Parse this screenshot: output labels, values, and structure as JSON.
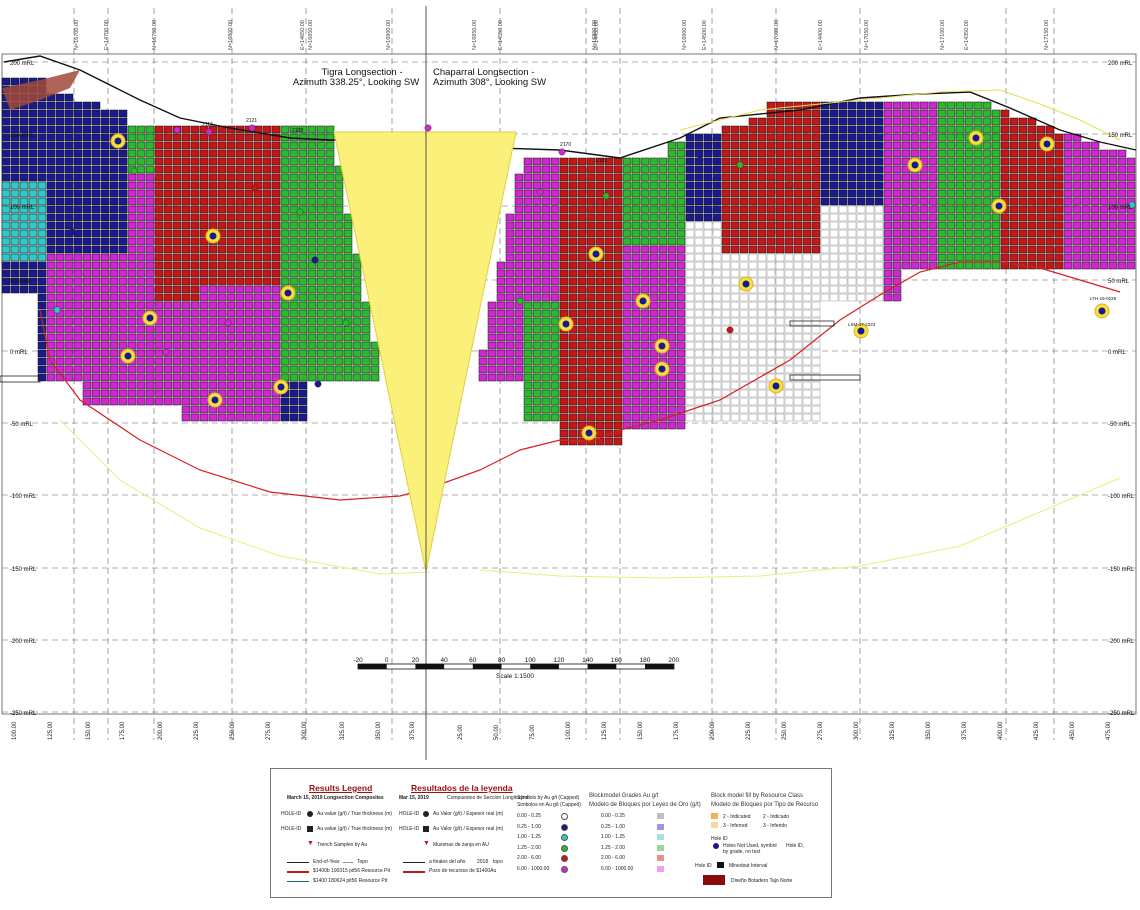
{
  "top_ticks": [
    "N=16700.00",
    "E=14700.00",
    "N=16750.00",
    "N=16800.00",
    "E=14650.00",
    "N=16850.00",
    "N=16900.00",
    "N=16850.00",
    "E=14550.00",
    "N=16800.00",
    "E=14450.00",
    "N=16900.00",
    "E=14500.00",
    "N=17000.00",
    "E=14400.00",
    "N=17050.00",
    "N=17100.00",
    "E=14350.00",
    "N=17150.00"
  ],
  "elevation_labels": [
    "200 mRL",
    "150 mRL",
    "100 mRL",
    "50 mRL",
    "0 mRL",
    "-50 mRL",
    "-100 mRL",
    "-150 mRL",
    "-200 mRL",
    "-250 mRL"
  ],
  "bottom_ticks_left": [
    "100.00",
    "125.00",
    "150.00",
    "175.00",
    "200.00",
    "225.00",
    "250.00",
    "275.00",
    "300.00",
    "325.00",
    "350.00",
    "375.00"
  ],
  "bottom_ticks_right": [
    "25.00",
    "50.00",
    "75.00",
    "100.00",
    "125.00",
    "150.00",
    "175.00",
    "200.00",
    "225.00",
    "250.00",
    "275.00",
    "300.00",
    "325.00",
    "350.00",
    "375.00",
    "400.00",
    "425.00",
    "450.00",
    "475.00"
  ],
  "section_titles": {
    "tigra": [
      "Tigra Longsection -",
      "Azimuth 338.25°, Looking SW"
    ],
    "chaparral": [
      "Chaparral Longsection -",
      "Azimuth 308°, Looking SW"
    ]
  },
  "scale_ticks": [
    "-20",
    "0",
    "20",
    "40",
    "60",
    "80",
    "100",
    "120",
    "140",
    "160",
    "180",
    "200"
  ],
  "scale_label": "Scale 1:1500",
  "hole_labels": [
    "2113",
    "2121",
    "2128",
    "2170",
    "2165",
    "LTH-16-0228",
    "LSM-17-2223"
  ],
  "colors": {
    "blue": "#1a1a8c",
    "green": "#2db82d",
    "magenta": "#d028d0",
    "red": "#c41818",
    "white": "#ffffff",
    "cyan": "#30c8c8",
    "yellow": "#f5ea6e",
    "pit": "#8b3a3a"
  },
  "legend": {
    "title_en": "Results Legend",
    "title_es": "Resultados de la leyenda",
    "sub_en": "March 15, 2019 Longsection Composites",
    "sub_es": "Mar 15, 2019",
    "sub_es2": "Compuestos de Seccion Longitudinal",
    "symbols_en": "Symbols by Au g/t (Capped)",
    "symbols_es": "Simbolos en Au g/t (Capped)",
    "blockmodel_title": "Blockmodel  Grades Au g/t",
    "blockmodel_title_es": "Modelo de Bloques por Leyes de Oro (g/t)",
    "class_title": "Block model  fill by Resource Class",
    "class_title_es": "Modelo de Bloques por Tipo de Recurso",
    "rows_left": [
      "HOLE-ID",
      "HOLE-ID"
    ],
    "row_au_true": "Au value (g/t) / True thickness (m)",
    "row_au_true2": "Au value (g/t) / True thickness (m)",
    "row_au_es": "Au Valor (g/t) / Espesor real (m)",
    "row_au_es2": "Au Valor (g/t) / Espesor real (m)",
    "trench_en": "Trench Samples by Au",
    "trench_es": "Muestras de zanja en AU",
    "eoy_en": "End-of-Year",
    "topo_en": "Topo",
    "eoy_es": "a finales del año",
    "year": "2018",
    "topo_es": "topo",
    "pit1_en": "$1400b 190315 pit56 Resource Pit",
    "pit2_en": "$1400 180624 pit56 Resource Pit",
    "pit_es": "Pozo de recursos de $1400Au",
    "grade_ranges": [
      "0.00 - 0.25",
      "0.25 - 1.00",
      "1.00 - 1.25",
      "1.25 - 2.00",
      "2.00 - 6.00",
      "6.00 - 1000.00"
    ],
    "grade_dot_colors": [
      "#ffffff",
      "#1a1a8c",
      "#30c8c8",
      "#2db82d",
      "#c41818",
      "#d028d0"
    ],
    "grade_fill_colors": [
      "#bfbfbf",
      "#9a9ae0",
      "#a8e0e0",
      "#9ad89a",
      "#e89090",
      "#f0a0f0"
    ],
    "class_items": [
      "2 - Indicated",
      "2 - Indicado",
      "3 - Inferred",
      "3 - Inferido"
    ],
    "class_colors": [
      "#f5b050",
      "#f8d8a0"
    ],
    "holes_not_used": "Holes Not Used, symbol by grade, no text",
    "hole_id": "Hole ID,",
    "mined_out": "Minedout Interval",
    "pit_design": "Diseño Botadero Tajo Norte",
    "pit_design_color": "#8b0a0a",
    "hole_small": "Hole ID"
  }
}
